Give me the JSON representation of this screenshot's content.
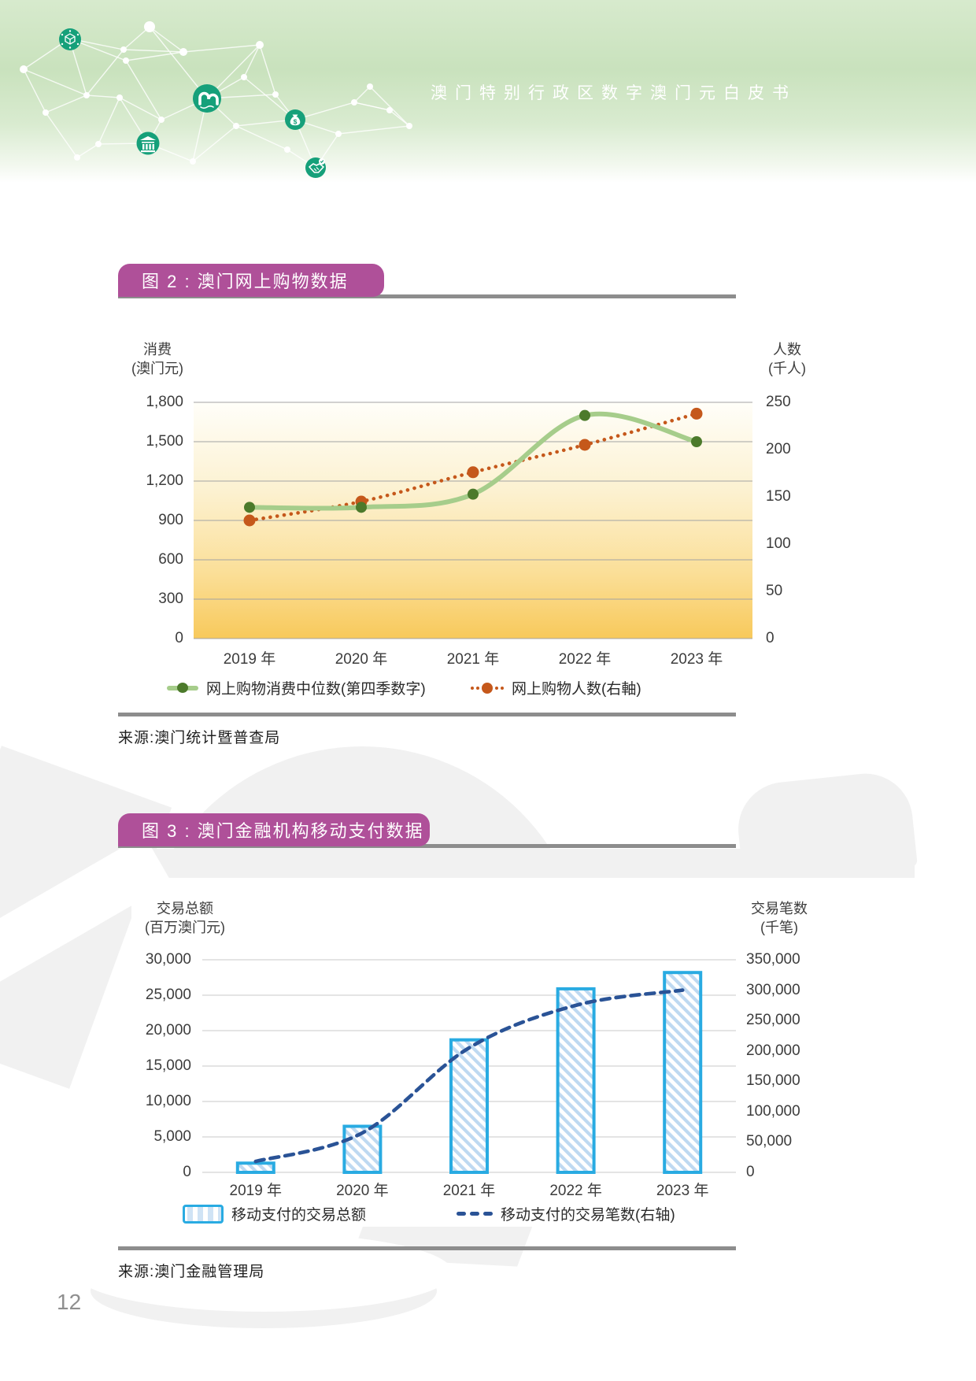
{
  "page": {
    "header_title": "澳门特别行政区数字澳门元白皮书",
    "page_number": "12"
  },
  "header_icons": [
    "blockchain-icon",
    "m-logo-icon",
    "bank-icon",
    "money-bag-icon",
    "handshake-icon"
  ],
  "figure2": {
    "banner_label": "图 2 : 澳门网上购物数据",
    "left_axis_title": [
      "消费",
      "(澳门元)"
    ],
    "right_axis_title": [
      "人数",
      "(千人)"
    ],
    "source": "来源:澳门统计暨普查局",
    "legend": [
      {
        "label": "网上购物消费中位数(第四季数字)",
        "swatch": "green-line-marker",
        "color": "#a6cd8b",
        "marker_color": "#4c7a2b"
      },
      {
        "label": "网上购物人数(右軸)",
        "swatch": "orange-dotted-marker",
        "color": "#c5581b"
      }
    ],
    "chart_data": {
      "type": "line",
      "categories": [
        "2019 年",
        "2020 年",
        "2021 年",
        "2022 年",
        "2023 年"
      ],
      "series": [
        {
          "name": "网上购物消费中位数(第四季数字)",
          "axis": "left",
          "style": "solid-smooth",
          "color": "#a6cd8b",
          "marker_color": "#4c7a2b",
          "values": [
            1000,
            1000,
            1100,
            1700,
            1500
          ]
        },
        {
          "name": "网上购物人数(右軸)",
          "axis": "right",
          "style": "dotted",
          "color": "#c5581b",
          "marker_color": "#c5581b",
          "values": [
            125,
            145,
            176,
            205,
            238
          ]
        }
      ],
      "left_axis": {
        "label": "消费(澳门元)",
        "min": 0,
        "max": 1800,
        "ticks": [
          "1,800",
          "1,500",
          "1,200",
          "900",
          "600",
          "300",
          "0"
        ]
      },
      "right_axis": {
        "label": "人数(千人)",
        "min": 0,
        "max": 250,
        "ticks": [
          "250",
          "200",
          "150",
          "100",
          "50",
          "0"
        ]
      },
      "grid": true,
      "legend_position": "bottom",
      "plot_background": "yellow-gradient"
    }
  },
  "figure3": {
    "banner_label": "图 3 : 澳门金融机构移动支付数据",
    "left_axis_title": [
      "交易总额",
      "(百万澳门元)"
    ],
    "right_axis_title": [
      "交易笔数",
      "(千笔)"
    ],
    "source": "来源:澳门金融管理局",
    "legend": [
      {
        "label": "移动支付的交易总额",
        "swatch": "hatched-bar",
        "border_color": "#29abe2",
        "hatch_color": "#bed9f1"
      },
      {
        "label": "移动支付的交易笔数(右轴)",
        "swatch": "navy-dashed-line",
        "color": "#2a5396"
      }
    ],
    "chart_data": {
      "type": "bar",
      "categories": [
        "2019 年",
        "2020 年",
        "2021 年",
        "2022 年",
        "2023 年"
      ],
      "series": [
        {
          "name": "移动支付的交易总额",
          "type": "bar",
          "axis": "left",
          "border_color": "#29abe2",
          "hatch_color": "#bed9f1",
          "values": [
            1300,
            6500,
            18700,
            25900,
            28200
          ]
        },
        {
          "name": "移动支付的交易笔数(右轴)",
          "type": "line",
          "axis": "right",
          "style": "dashed-smooth",
          "color": "#2a5396",
          "values": [
            18000,
            65000,
            205000,
            275000,
            300000
          ]
        }
      ],
      "left_axis": {
        "label": "交易总额(百万澳门元)",
        "min": 0,
        "max": 30000,
        "ticks": [
          "30,000",
          "25,000",
          "20,000",
          "15,000",
          "10,000",
          "5,000",
          "0"
        ]
      },
      "right_axis": {
        "label": "交易笔数(千笔)",
        "min": 0,
        "max": 350000,
        "ticks": [
          "350,000",
          "300,000",
          "250,000",
          "200,000",
          "150,000",
          "100,000",
          "50,000",
          "0"
        ]
      },
      "grid": true,
      "legend_position": "bottom",
      "plot_background": "white"
    }
  }
}
